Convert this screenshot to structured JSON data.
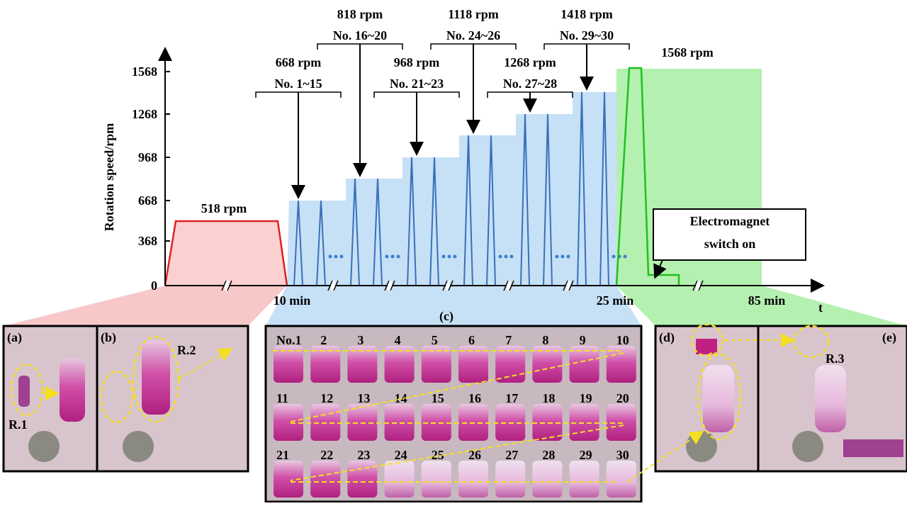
{
  "plot": {
    "y_label": "Rotation speed/rpm",
    "y_ticks": [
      "0",
      "368",
      "668",
      "968",
      "1268",
      "1568"
    ],
    "x_labels": [
      "10 min",
      "25 min",
      "85 min"
    ],
    "x_axis": "t",
    "first_stage": "518 rpm",
    "steps": [
      {
        "speed": "668 rpm",
        "samples": "No. 1~15"
      },
      {
        "speed": "818 rpm",
        "samples": "No. 16~20"
      },
      {
        "speed": "968 rpm",
        "samples": "No. 21~23"
      },
      {
        "speed": "1118 rpm",
        "samples": "No. 24~26"
      },
      {
        "speed": "1268 rpm",
        "samples": "No. 27~28"
      },
      {
        "speed": "1418 rpm",
        "samples": "No. 29~30"
      }
    ],
    "final_stage": "1568 rpm",
    "note": [
      "Electromagnet",
      "switch on"
    ]
  },
  "panels": {
    "a": "(a)",
    "b": "(b)",
    "c": "(c)",
    "d": "(d)",
    "e": "(e)",
    "r1": "R.1",
    "r2": "R.2",
    "r3": "R.3"
  },
  "tubes": [
    [
      "No.1",
      "2",
      "3",
      "4",
      "5",
      "6",
      "7",
      "8",
      "9",
      "10"
    ],
    [
      "11",
      "12",
      "13",
      "14",
      "15",
      "16",
      "17",
      "18",
      "19",
      "20"
    ],
    [
      "21",
      "22",
      "23",
      "24",
      "25",
      "26",
      "27",
      "28",
      "29",
      "30"
    ]
  ]
}
